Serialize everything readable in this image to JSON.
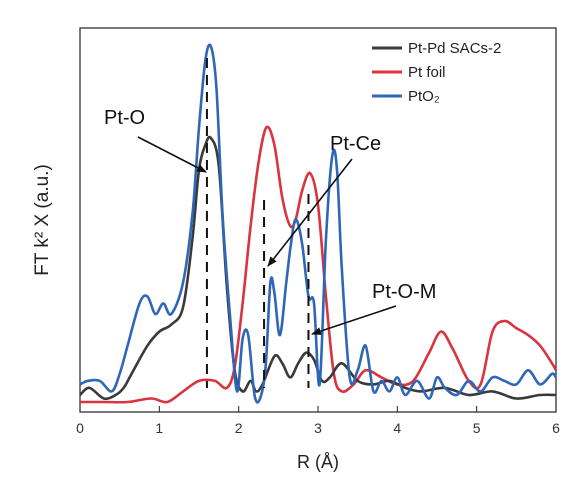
{
  "chart_data": {
    "type": "line",
    "xlabel": "R (Å)",
    "ylabel": "FT k² X (a.u.)",
    "xlim": [
      0,
      6
    ],
    "x_ticks": [
      "0",
      "1",
      "2",
      "3",
      "4",
      "5",
      "6"
    ],
    "y_ticks": "none",
    "grid": false,
    "legend_position": "top-right",
    "series": [
      {
        "name": "Pt-Pd SACs-2",
        "color": "#3a3a3a",
        "x": [
          0.0,
          0.12,
          0.3,
          0.45,
          0.55,
          0.65,
          0.85,
          1.0,
          1.15,
          1.3,
          1.42,
          1.5,
          1.58,
          1.65,
          1.75,
          1.85,
          1.95,
          2.05,
          2.15,
          2.22,
          2.3,
          2.45,
          2.55,
          2.65,
          2.75,
          2.85,
          2.95,
          3.05,
          3.15,
          3.3,
          3.5,
          3.7,
          3.9,
          4.1,
          4.3,
          4.6,
          4.9,
          5.2,
          5.5,
          5.8,
          6.0
        ],
        "y": [
          0.02,
          0.04,
          0.01,
          0.02,
          0.04,
          0.08,
          0.16,
          0.2,
          0.22,
          0.27,
          0.47,
          0.66,
          0.73,
          0.75,
          0.67,
          0.33,
          0.09,
          0.03,
          0.06,
          0.03,
          0.05,
          0.13,
          0.11,
          0.07,
          0.11,
          0.14,
          0.12,
          0.06,
          0.07,
          0.11,
          0.06,
          0.05,
          0.06,
          0.04,
          0.03,
          0.04,
          0.02,
          0.03,
          0.01,
          0.02,
          0.02
        ]
      },
      {
        "name": "Pt foil",
        "color": "#d9343f",
        "x": [
          0.0,
          0.3,
          0.6,
          0.9,
          1.1,
          1.3,
          1.5,
          1.7,
          1.85,
          1.95,
          2.05,
          2.15,
          2.25,
          2.35,
          2.45,
          2.55,
          2.65,
          2.72,
          2.8,
          2.9,
          3.0,
          3.1,
          3.2,
          3.3,
          3.45,
          3.6,
          3.8,
          4.0,
          4.2,
          4.4,
          4.55,
          4.7,
          4.9,
          5.05,
          5.2,
          5.35,
          5.5,
          5.65,
          5.8,
          5.95,
          6.0
        ],
        "y": [
          0.0,
          0.0,
          0.0,
          0.01,
          0.0,
          0.03,
          0.06,
          0.06,
          0.04,
          0.1,
          0.28,
          0.5,
          0.68,
          0.78,
          0.73,
          0.58,
          0.5,
          0.52,
          0.6,
          0.65,
          0.56,
          0.3,
          0.08,
          0.03,
          0.05,
          0.09,
          0.07,
          0.05,
          0.06,
          0.14,
          0.2,
          0.15,
          0.06,
          0.05,
          0.2,
          0.23,
          0.21,
          0.19,
          0.16,
          0.11,
          0.09
        ]
      },
      {
        "name": "PtO₂",
        "color": "#2f67b8",
        "x": [
          0.0,
          0.1,
          0.25,
          0.4,
          0.5,
          0.6,
          0.75,
          0.85,
          0.95,
          1.05,
          1.15,
          1.3,
          1.42,
          1.5,
          1.58,
          1.65,
          1.72,
          1.8,
          1.9,
          1.98,
          2.05,
          2.12,
          2.2,
          2.27,
          2.34,
          2.4,
          2.45,
          2.52,
          2.6,
          2.66,
          2.72,
          2.8,
          2.88,
          2.95,
          3.02,
          3.1,
          3.18,
          3.24,
          3.3,
          3.4,
          3.5,
          3.6,
          3.7,
          3.8,
          3.9,
          4.0,
          4.1,
          4.25,
          4.4,
          4.5,
          4.6,
          4.75,
          4.9,
          5.05,
          5.2,
          5.35,
          5.5,
          5.65,
          5.8,
          5.95,
          6.0
        ],
        "y": [
          0.05,
          0.06,
          0.06,
          0.03,
          0.08,
          0.16,
          0.28,
          0.3,
          0.25,
          0.28,
          0.25,
          0.34,
          0.54,
          0.78,
          0.97,
          1.01,
          0.89,
          0.52,
          0.22,
          0.03,
          0.18,
          0.19,
          0.02,
          0.01,
          0.1,
          0.34,
          0.31,
          0.19,
          0.34,
          0.45,
          0.52,
          0.45,
          0.3,
          0.28,
          0.05,
          0.46,
          0.7,
          0.66,
          0.38,
          0.07,
          0.09,
          0.16,
          0.03,
          0.06,
          0.03,
          0.07,
          0.02,
          0.06,
          0.01,
          0.07,
          0.04,
          0.02,
          0.06,
          0.03,
          0.07,
          0.06,
          0.05,
          0.09,
          0.05,
          0.08,
          0.07
        ]
      }
    ],
    "reference_lines": [
      {
        "x": 1.6,
        "style": "dashed"
      },
      {
        "x": 2.32,
        "style": "dashed"
      },
      {
        "x": 2.88,
        "style": "dashed"
      }
    ],
    "annotations": [
      {
        "text": "Pt-O",
        "points_to_x": 1.6
      },
      {
        "text": "Pt-Ce",
        "points_to_x": 2.32
      },
      {
        "text": "Pt-O-M",
        "points_to_x": 2.88
      }
    ]
  }
}
